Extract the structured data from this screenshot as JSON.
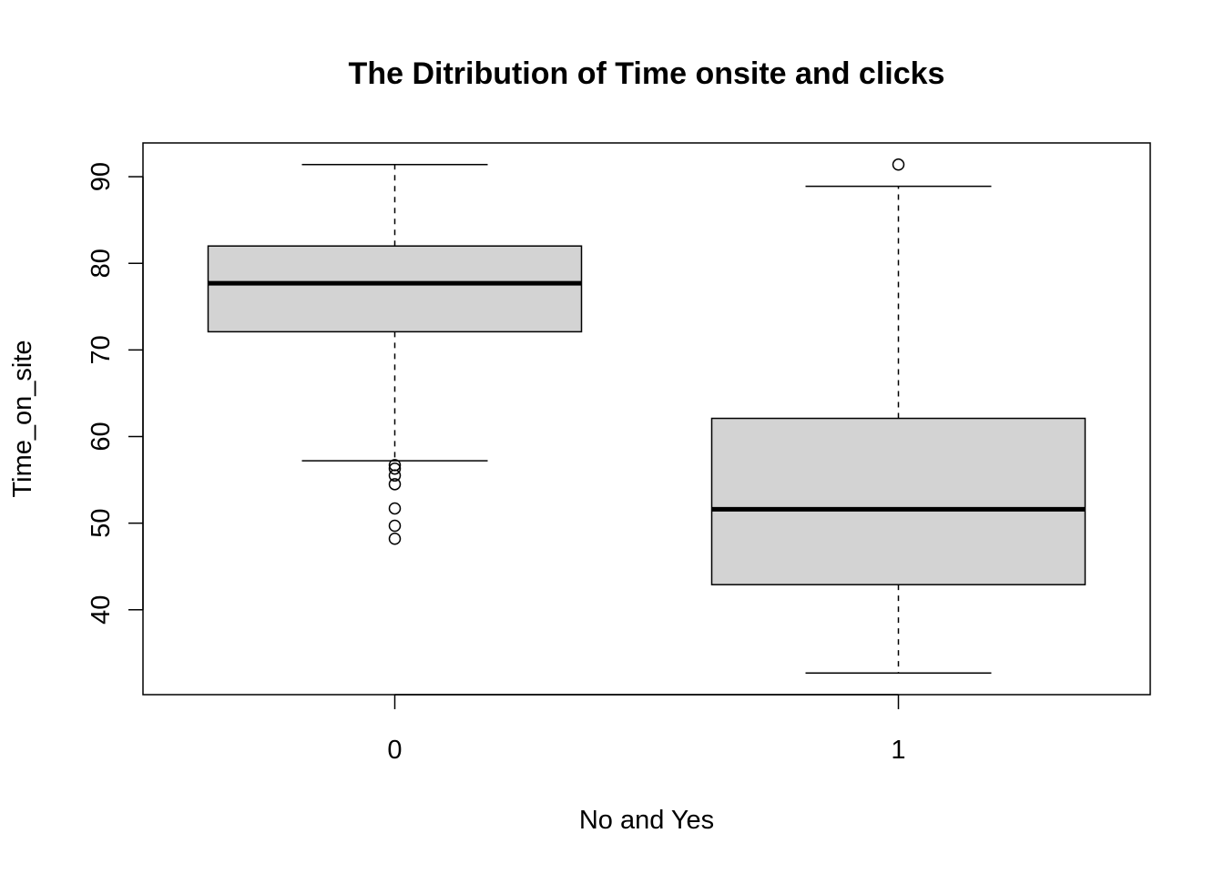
{
  "chart_data": {
    "type": "boxplot",
    "title": "The Ditribution of Time onsite and clicks",
    "xlabel": "No and Yes",
    "ylabel": "Time_on_site",
    "categories": [
      "0",
      "1"
    ],
    "ylim": [
      30.2,
      93.9
    ],
    "yticks": [
      40,
      50,
      60,
      70,
      80,
      90
    ],
    "grid": false,
    "legend": "none",
    "box_fill": "#d3d3d3",
    "series": [
      {
        "category": "0",
        "whisker_low": 57.2,
        "q1": 72.1,
        "median": 77.7,
        "q3": 82.0,
        "whisker_high": 91.4,
        "outliers": [
          56.7,
          56.3,
          55.5,
          54.5,
          51.7,
          49.7,
          48.2
        ]
      },
      {
        "category": "1",
        "whisker_low": 32.7,
        "q1": 42.9,
        "median": 51.6,
        "q3": 62.1,
        "whisker_high": 88.9,
        "outliers": [
          91.4
        ]
      }
    ]
  }
}
